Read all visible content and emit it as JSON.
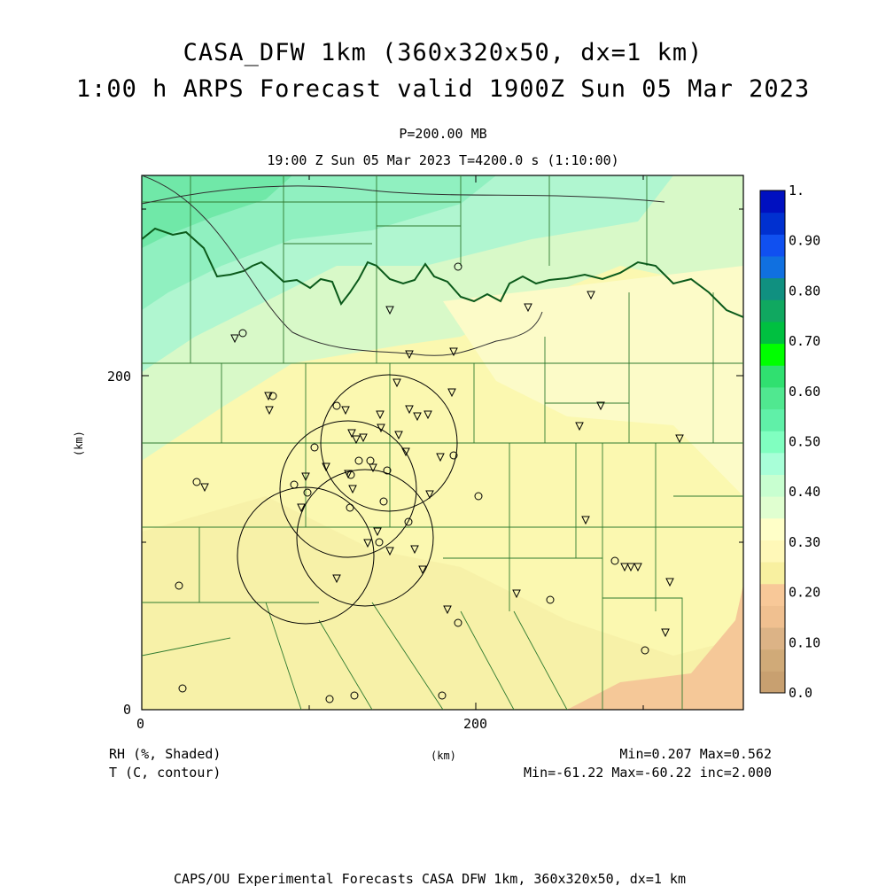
{
  "header": {
    "title_line1": "CASA_DFW 1km (360x320x50, dx=1 km)",
    "title_line2": "1:00 h ARPS Forecast valid 1900Z Sun 05 Mar 2023",
    "level": "P=200.00 MB",
    "valid_line": "19:00 Z Sun 05 Mar 2023   T=4200.0 s (1:10:00)"
  },
  "axes": {
    "x_ticks": [
      "0",
      "200"
    ],
    "y_ticks": [
      "0",
      "200"
    ],
    "x_unit": "(km)",
    "y_unit": "(km)",
    "x_range_km": [
      0,
      360
    ],
    "y_range_km": [
      0,
      320
    ]
  },
  "colorbar": {
    "labels": [
      "0.0",
      "0.10",
      "0.20",
      "0.30",
      "0.40",
      "0.50",
      "0.60",
      "0.70",
      "0.80",
      "0.90",
      "1."
    ],
    "colors": [
      "#c8a070",
      "#d0aa78",
      "#dcb386",
      "#f0c090",
      "#f8c898",
      "#f8f0a0",
      "#fff8b8",
      "#ffffc8",
      "#e0ffd0",
      "#c8ffd0",
      "#a8ffd8",
      "#80ffc0",
      "#60f0a8",
      "#50e890",
      "#30e070",
      "#00ff00",
      "#00c040",
      "#10a860",
      "#109080",
      "#1070e0",
      "#1050f0",
      "#0030d0",
      "#0010c0"
    ]
  },
  "footer": {
    "field1": "RH (%, Shaded)",
    "field2": "T (C, contour)",
    "range1": "Min=0.207 Max=0.562",
    "range2": "Min=-61.22 Max=-60.22 inc=2.000",
    "unit": "(km)",
    "credit": "CAPS/OU Experimental Forecasts  CASA DFW 1km, 360x320x50, dx=1 km"
  }
}
